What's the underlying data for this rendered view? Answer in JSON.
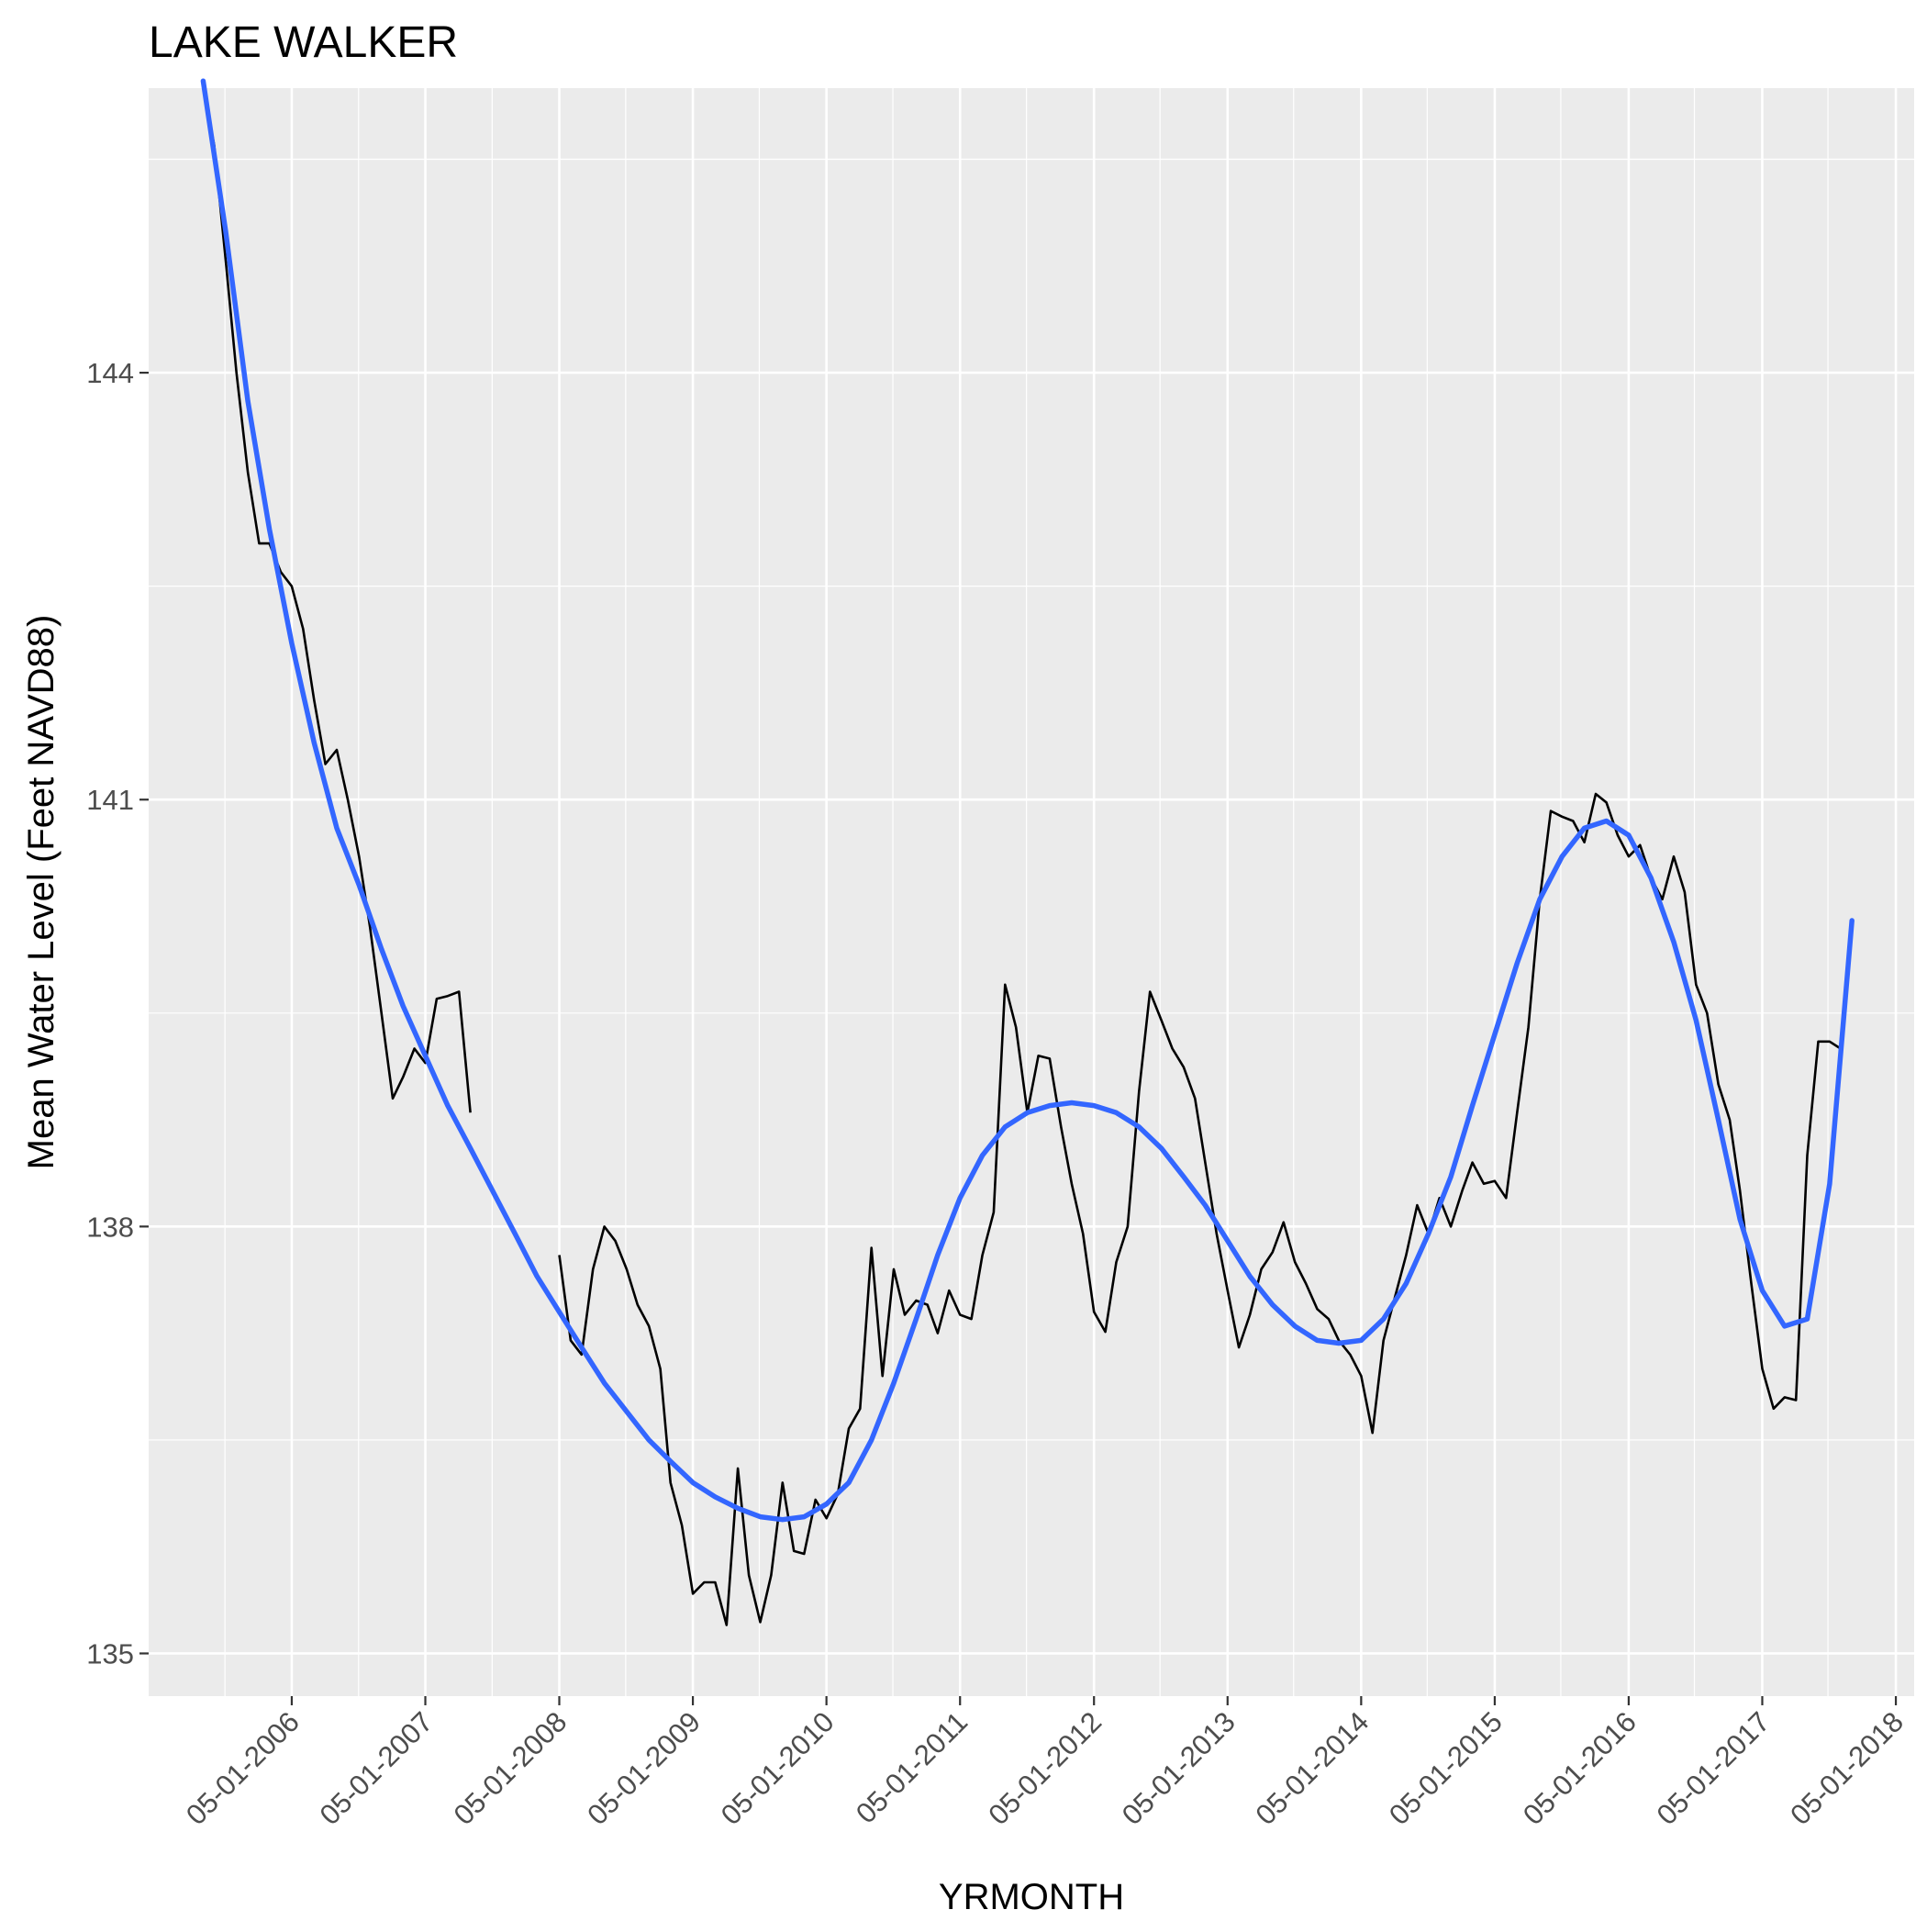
{
  "chart_data": {
    "type": "line",
    "title": "LAKE WALKER",
    "xlabel": "YRMONTH",
    "ylabel": "Mean Water Level (Feet NAVD88)",
    "x_axis": {
      "type": "date",
      "range": [
        "2005-04-05",
        "2018-06-20"
      ],
      "ticks": [
        "05-01-2006",
        "05-01-2007",
        "05-01-2008",
        "05-01-2009",
        "05-01-2010",
        "05-01-2011",
        "05-01-2012",
        "05-01-2013",
        "05-01-2014",
        "05-01-2015",
        "05-01-2016",
        "05-01-2017",
        "05-01-2018"
      ]
    },
    "y_axis": {
      "range": [
        134.7,
        146.0
      ],
      "ticks": [
        135,
        138,
        141,
        144
      ]
    },
    "grid": true,
    "background": "#ebebeb",
    "series": [
      {
        "color": "#000000",
        "kind": "observed",
        "segments": [
          [
            [
              "2005-09-01",
              146.0
            ],
            [
              "2005-10-01",
              145.6
            ],
            [
              "2005-11-01",
              144.8
            ],
            [
              "2005-12-01",
              144.0
            ],
            [
              "2006-01-01",
              143.3
            ],
            [
              "2006-02-01",
              142.8
            ],
            [
              "2006-03-01",
              142.8
            ],
            [
              "2006-04-01",
              142.6
            ],
            [
              "2006-05-01",
              142.5
            ],
            [
              "2006-06-01",
              142.2
            ],
            [
              "2006-07-01",
              141.7
            ],
            [
              "2006-08-01",
              141.25
            ],
            [
              "2006-09-01",
              141.35
            ],
            [
              "2006-10-01",
              141.0
            ],
            [
              "2006-11-01",
              140.6
            ],
            [
              "2006-12-01",
              140.1
            ],
            [
              "2007-01-01",
              139.5
            ],
            [
              "2007-02-01",
              138.9
            ],
            [
              "2007-03-01",
              139.05
            ],
            [
              "2007-04-01",
              139.25
            ],
            [
              "2007-05-01",
              139.15
            ],
            [
              "2007-06-01",
              139.6
            ],
            [
              "2007-07-01",
              139.62
            ],
            [
              "2007-08-01",
              139.65
            ],
            [
              "2007-09-01",
              138.8
            ]
          ],
          [
            [
              "2008-05-01",
              137.8
            ],
            [
              "2008-06-01",
              137.2
            ],
            [
              "2008-07-01",
              137.1
            ],
            [
              "2008-08-01",
              137.7
            ],
            [
              "2008-09-01",
              138.0
            ],
            [
              "2008-10-01",
              137.9
            ],
            [
              "2008-11-01",
              137.7
            ],
            [
              "2008-12-01",
              137.45
            ],
            [
              "2009-01-01",
              137.3
            ],
            [
              "2009-02-01",
              137.0
            ],
            [
              "2009-03-01",
              136.2
            ],
            [
              "2009-04-01",
              135.9
            ],
            [
              "2009-05-01",
              135.42
            ],
            [
              "2009-06-01",
              135.5
            ],
            [
              "2009-07-01",
              135.5
            ],
            [
              "2009-08-01",
              135.2
            ],
            [
              "2009-09-01",
              136.3
            ],
            [
              "2009-10-01",
              135.55
            ],
            [
              "2009-11-01",
              135.22
            ],
            [
              "2009-12-01",
              135.55
            ],
            [
              "2010-01-01",
              136.2
            ],
            [
              "2010-02-01",
              135.72
            ],
            [
              "2010-03-01",
              135.7
            ],
            [
              "2010-04-01",
              136.08
            ],
            [
              "2010-05-01",
              135.95
            ],
            [
              "2010-06-01",
              136.12
            ],
            [
              "2010-07-01",
              136.58
            ],
            [
              "2010-08-01",
              136.72
            ],
            [
              "2010-09-01",
              137.85
            ],
            [
              "2010-10-01",
              136.95
            ],
            [
              "2010-11-01",
              137.7
            ],
            [
              "2010-12-01",
              137.38
            ],
            [
              "2011-01-01",
              137.48
            ],
            [
              "2011-02-01",
              137.45
            ],
            [
              "2011-03-01",
              137.25
            ],
            [
              "2011-04-01",
              137.55
            ],
            [
              "2011-05-01",
              137.38
            ],
            [
              "2011-06-01",
              137.35
            ],
            [
              "2011-07-01",
              137.8
            ],
            [
              "2011-08-01",
              138.1
            ],
            [
              "2011-09-01",
              139.7
            ],
            [
              "2011-10-01",
              139.4
            ],
            [
              "2011-11-01",
              138.8
            ],
            [
              "2011-12-01",
              139.2
            ],
            [
              "2012-01-01",
              139.18
            ],
            [
              "2012-02-01",
              138.7
            ],
            [
              "2012-03-01",
              138.3
            ],
            [
              "2012-04-01",
              137.95
            ],
            [
              "2012-05-01",
              137.4
            ],
            [
              "2012-06-01",
              137.26
            ],
            [
              "2012-07-01",
              137.75
            ],
            [
              "2012-08-01",
              138.0
            ],
            [
              "2012-09-01",
              138.95
            ],
            [
              "2012-10-01",
              139.65
            ],
            [
              "2012-11-01",
              139.45
            ],
            [
              "2012-12-01",
              139.25
            ],
            [
              "2013-01-01",
              139.12
            ],
            [
              "2013-02-01",
              138.9
            ],
            [
              "2013-03-01",
              138.45
            ],
            [
              "2013-04-01",
              137.95
            ],
            [
              "2013-05-01",
              137.55
            ],
            [
              "2013-06-01",
              137.15
            ],
            [
              "2013-07-01",
              137.38
            ],
            [
              "2013-08-01",
              137.7
            ],
            [
              "2013-09-01",
              137.82
            ],
            [
              "2013-10-01",
              138.03
            ],
            [
              "2013-11-01",
              137.75
            ],
            [
              "2013-12-01",
              137.6
            ],
            [
              "2014-01-01",
              137.42
            ],
            [
              "2014-02-01",
              137.35
            ],
            [
              "2014-03-01",
              137.2
            ],
            [
              "2014-04-01",
              137.1
            ],
            [
              "2014-05-01",
              136.95
            ],
            [
              "2014-06-01",
              136.55
            ],
            [
              "2014-07-01",
              137.2
            ],
            [
              "2014-08-01",
              137.5
            ],
            [
              "2014-09-01",
              137.8
            ],
            [
              "2014-10-01",
              138.15
            ],
            [
              "2014-11-01",
              137.95
            ],
            [
              "2014-12-01",
              138.2
            ],
            [
              "2015-01-01",
              138.0
            ],
            [
              "2015-02-01",
              138.25
            ],
            [
              "2015-03-01",
              138.45
            ],
            [
              "2015-04-01",
              138.3
            ],
            [
              "2015-05-01",
              138.32
            ],
            [
              "2015-06-01",
              138.2
            ],
            [
              "2015-07-01",
              138.8
            ],
            [
              "2015-08-01",
              139.4
            ],
            [
              "2015-09-01",
              140.3
            ],
            [
              "2015-10-01",
              140.92
            ],
            [
              "2015-11-01",
              140.88
            ],
            [
              "2015-12-01",
              140.85
            ],
            [
              "2016-01-01",
              140.7
            ],
            [
              "2016-02-01",
              141.04
            ],
            [
              "2016-03-01",
              140.98
            ],
            [
              "2016-04-01",
              140.75
            ],
            [
              "2016-05-01",
              140.6
            ],
            [
              "2016-06-01",
              140.68
            ],
            [
              "2016-07-01",
              140.45
            ],
            [
              "2016-08-01",
              140.3
            ],
            [
              "2016-09-01",
              140.6
            ],
            [
              "2016-10-01",
              140.35
            ],
            [
              "2016-11-01",
              139.7
            ],
            [
              "2016-12-01",
              139.5
            ],
            [
              "2017-01-01",
              139.0
            ],
            [
              "2017-02-01",
              138.75
            ],
            [
              "2017-03-01",
              138.25
            ],
            [
              "2017-04-01",
              137.6
            ],
            [
              "2017-05-01",
              137.0
            ],
            [
              "2017-06-01",
              136.72
            ],
            [
              "2017-07-01",
              136.8
            ],
            [
              "2017-08-01",
              136.78
            ],
            [
              "2017-09-01",
              138.5
            ],
            [
              "2017-10-01",
              139.3
            ],
            [
              "2017-11-01",
              139.3
            ],
            [
              "2017-12-01",
              139.25
            ]
          ]
        ]
      },
      {
        "color": "#3366ff",
        "kind": "smooth",
        "points": [
          [
            "2005-09-01",
            146.05
          ],
          [
            "2005-11-01",
            145.0
          ],
          [
            "2006-01-01",
            143.8
          ],
          [
            "2006-03-01",
            142.9
          ],
          [
            "2006-05-01",
            142.1
          ],
          [
            "2006-07-01",
            141.4
          ],
          [
            "2006-09-01",
            140.8
          ],
          [
            "2006-11-01",
            140.4
          ],
          [
            "2007-01-01",
            139.95
          ],
          [
            "2007-03-01",
            139.55
          ],
          [
            "2007-05-01",
            139.2
          ],
          [
            "2007-07-01",
            138.85
          ],
          [
            "2007-09-01",
            138.55
          ],
          [
            "2007-11-01",
            138.25
          ],
          [
            "2008-01-01",
            137.95
          ],
          [
            "2008-03-01",
            137.65
          ],
          [
            "2008-05-01",
            137.4
          ],
          [
            "2008-07-01",
            137.15
          ],
          [
            "2008-09-01",
            136.9
          ],
          [
            "2008-11-01",
            136.7
          ],
          [
            "2009-01-01",
            136.5
          ],
          [
            "2009-03-01",
            136.35
          ],
          [
            "2009-05-01",
            136.2
          ],
          [
            "2009-07-01",
            136.1
          ],
          [
            "2009-09-01",
            136.02
          ],
          [
            "2009-11-01",
            135.96
          ],
          [
            "2010-01-01",
            135.94
          ],
          [
            "2010-03-01",
            135.96
          ],
          [
            "2010-05-01",
            136.05
          ],
          [
            "2010-07-01",
            136.2
          ],
          [
            "2010-09-01",
            136.5
          ],
          [
            "2010-11-01",
            136.9
          ],
          [
            "2011-01-01",
            137.35
          ],
          [
            "2011-03-01",
            137.8
          ],
          [
            "2011-05-01",
            138.2
          ],
          [
            "2011-07-01",
            138.5
          ],
          [
            "2011-09-01",
            138.7
          ],
          [
            "2011-11-01",
            138.8
          ],
          [
            "2012-01-01",
            138.85
          ],
          [
            "2012-03-01",
            138.87
          ],
          [
            "2012-05-01",
            138.85
          ],
          [
            "2012-07-01",
            138.8
          ],
          [
            "2012-09-01",
            138.7
          ],
          [
            "2012-11-01",
            138.55
          ],
          [
            "2013-01-01",
            138.35
          ],
          [
            "2013-03-01",
            138.15
          ],
          [
            "2013-05-01",
            137.9
          ],
          [
            "2013-07-01",
            137.65
          ],
          [
            "2013-09-01",
            137.45
          ],
          [
            "2013-11-01",
            137.3
          ],
          [
            "2014-01-01",
            137.2
          ],
          [
            "2014-03-01",
            137.18
          ],
          [
            "2014-05-01",
            137.2
          ],
          [
            "2014-07-01",
            137.35
          ],
          [
            "2014-09-01",
            137.6
          ],
          [
            "2014-11-01",
            137.95
          ],
          [
            "2015-01-01",
            138.35
          ],
          [
            "2015-03-01",
            138.85
          ],
          [
            "2015-05-01",
            139.35
          ],
          [
            "2015-07-01",
            139.85
          ],
          [
            "2015-09-01",
            140.3
          ],
          [
            "2015-11-01",
            140.6
          ],
          [
            "2016-01-01",
            140.8
          ],
          [
            "2016-03-01",
            140.85
          ],
          [
            "2016-05-01",
            140.75
          ],
          [
            "2016-07-01",
            140.45
          ],
          [
            "2016-09-01",
            140.0
          ],
          [
            "2016-11-01",
            139.45
          ],
          [
            "2017-01-01",
            138.75
          ],
          [
            "2017-03-01",
            138.05
          ],
          [
            "2017-05-01",
            137.55
          ],
          [
            "2017-07-01",
            137.3
          ],
          [
            "2017-09-01",
            137.35
          ],
          [
            "2017-11-01",
            138.3
          ],
          [
            "2018-01-01",
            140.15
          ]
        ]
      }
    ]
  }
}
